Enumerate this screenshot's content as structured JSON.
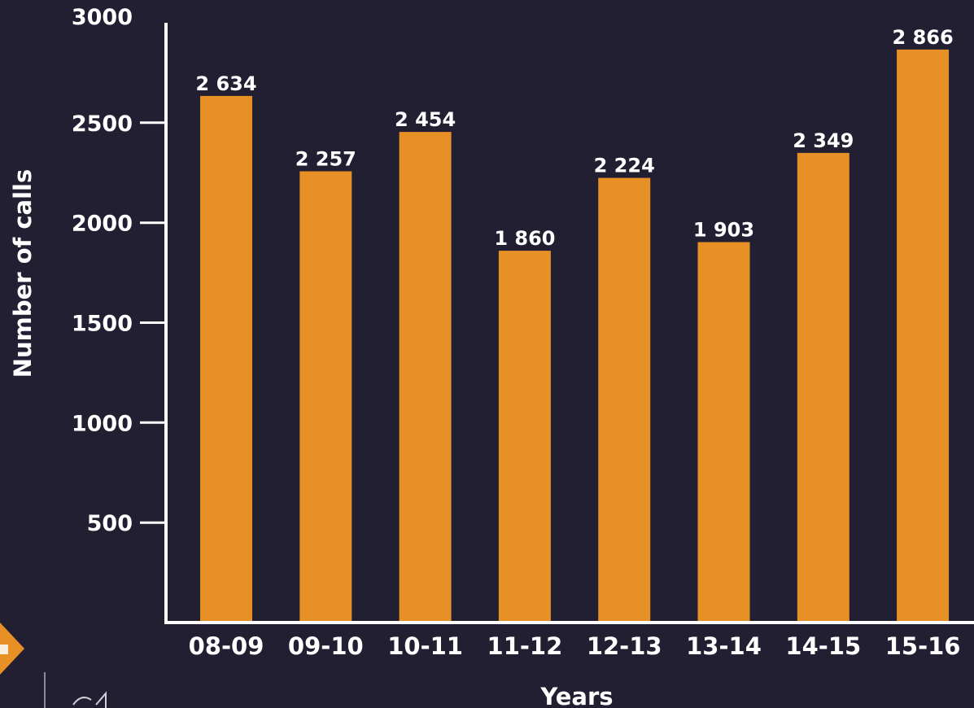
{
  "chart_data": {
    "type": "bar",
    "title": "",
    "xlabel": "Years",
    "ylabel": "Number of calls",
    "categories": [
      "08-09",
      "09-10",
      "10-11",
      "11-12",
      "12-13",
      "13-14",
      "14-15",
      "15-16"
    ],
    "values": [
      2634,
      2257,
      2454,
      1860,
      2224,
      1903,
      2349,
      2866
    ],
    "value_labels": [
      "2 634",
      "2 257",
      "2 454",
      "1 860",
      "2 224",
      "1 903",
      "2 349",
      "2 866"
    ],
    "y_ticks": [
      500,
      1000,
      1500,
      2000,
      2500,
      3000
    ],
    "ylim": [
      0,
      3000
    ],
    "grid": false,
    "legend": "none",
    "colors": {
      "bar": "#e69026",
      "background": "#221f33",
      "axis": "#ffffff",
      "text": "#ffffff",
      "badge": "#e69026"
    }
  }
}
